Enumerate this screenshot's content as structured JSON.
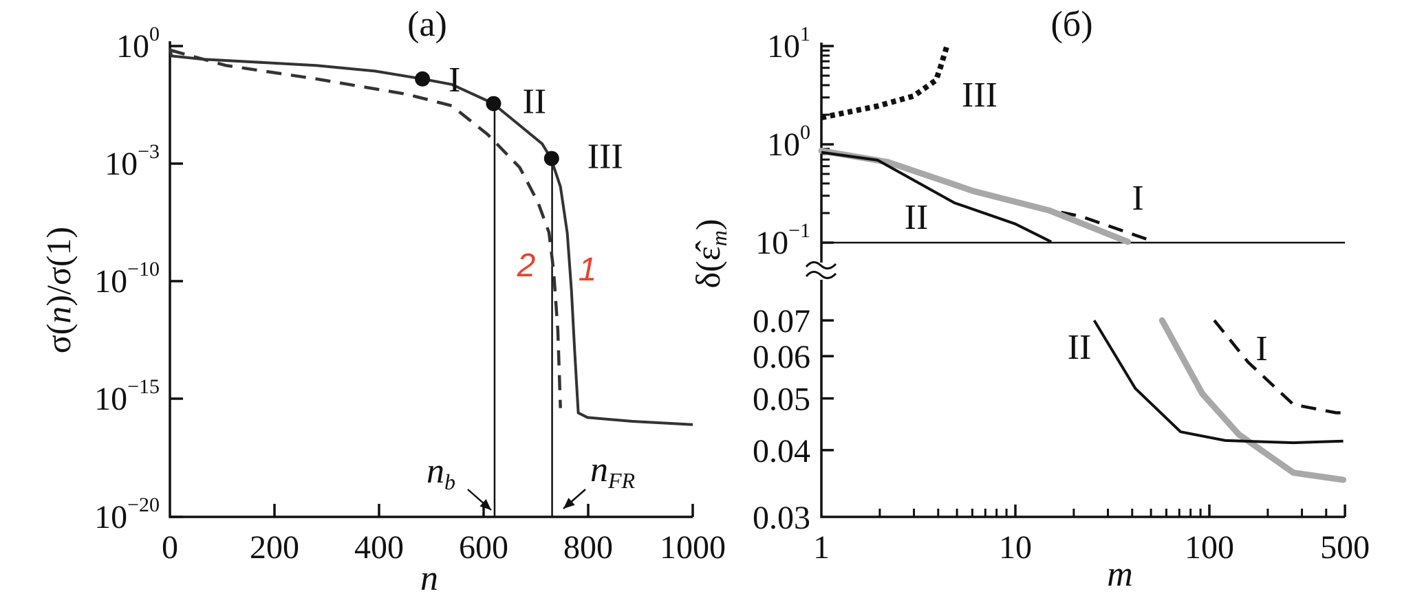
{
  "chart_data": [
    {
      "panel_label": "(a)",
      "type": "line",
      "xlabel": "n",
      "ylabel": {
        "text": "σ(",
        "italic": "n",
        "rest": ")/σ(1)"
      },
      "xlim": [
        0,
        1000
      ],
      "x_ticks": [
        0,
        200,
        400,
        600,
        800,
        1000
      ],
      "y_scale": "log",
      "y_ticks": [
        {
          "mantissa": "10",
          "exponent": "0",
          "value": 1
        },
        {
          "mantissa": "10",
          "exponent": "−3",
          "value": 0.001
        },
        {
          "mantissa": "10",
          "exponent": "−10",
          "value": 1e-10
        },
        {
          "mantissa": "10",
          "exponent": "−15",
          "value": 1e-15
        },
        {
          "mantissa": "10",
          "exponent": "−20",
          "value": 1e-20
        }
      ],
      "grid": false,
      "series": [
        {
          "name": "1",
          "style": "solid",
          "color": "#333333",
          "x": [
            0,
            3,
            64,
            280,
            392,
            483,
            539,
            617,
            669,
            712,
            729,
            747,
            760,
            768,
            774,
            781,
            799,
            885,
            1000
          ],
          "y": [
            0.89,
            0.56,
            0.46,
            0.32,
            0.23,
            0.145,
            0.105,
            0.035,
            0.0095,
            0.0032,
            0.00135,
            4.2e-05,
            7.4e-08,
            4e-11,
            1.3e-13,
            2.5e-16,
            1.6e-16,
            1.1e-16,
            8e-17
          ]
        },
        {
          "name": "2",
          "style": "dashed",
          "color": "#333333",
          "x": [
            0,
            107,
            280,
            453,
            539,
            608,
            669,
            704,
            725,
            734,
            742,
            747
          ],
          "y": [
            0.79,
            0.32,
            0.145,
            0.059,
            0.03,
            0.0055,
            0.00059,
            5e-06,
            8e-08,
            4e-10,
            8e-13,
            4e-16
          ]
        }
      ],
      "series_label_color": "#e8452c",
      "markers": [
        {
          "label": "I",
          "x": 483,
          "y": 0.145
        },
        {
          "label": "II",
          "x": 619,
          "y": 0.034
        },
        {
          "label": "III",
          "x": 730,
          "y": 0.00135
        }
      ],
      "vertical_lines": [
        {
          "main": "n",
          "sub": "b",
          "x": 621
        },
        {
          "main": "n",
          "sub": "FR",
          "x": 731
        }
      ]
    },
    {
      "panel_label": "(б)",
      "type": "line",
      "xlabel": "m",
      "ylabel": {
        "text": "δ(ε̂",
        "sub": "m",
        "rest": ")"
      },
      "x_scale": "log",
      "xlim": [
        1,
        500
      ],
      "x_ticks": [
        "1",
        "10",
        "100",
        "500"
      ],
      "y_scale": "log (broken axis)",
      "y_ticks_upper": [
        {
          "mantissa": "10",
          "exponent": "1",
          "value": 10
        },
        {
          "mantissa": "10",
          "exponent": "0",
          "value": 1
        },
        {
          "mantissa": "10",
          "exponent": "−1",
          "value": 0.1
        }
      ],
      "y_ticks_lower": [
        "0.07",
        "0.06",
        "0.05",
        "0.04",
        "0.03"
      ],
      "ylim_upper": [
        0.1,
        10
      ],
      "ylim_lower": [
        0.03,
        0.07
      ],
      "grid": false,
      "series": [
        {
          "name": "III",
          "style": "dotted",
          "color": "#111111",
          "segments": [
            {
              "x": [
                1,
                1.95,
                2.99,
                3.9,
                4.1,
                4.47
              ],
              "y": [
                1.87,
                2.45,
                3.1,
                4.5,
                6.0,
                10.5
              ]
            }
          ]
        },
        {
          "name": "I",
          "style": "dashed",
          "color": "#111111",
          "segments": [
            {
              "x": [
                1,
                1.95,
                2.68,
                10,
                21.8,
                50
              ],
              "y": [
                0.83,
                0.69,
                0.565,
                0.254,
                0.185,
                0.105
              ]
            },
            {
              "x": [
                106,
                158,
                271,
                450,
                490
              ],
              "y": [
                0.07,
                0.0585,
                0.0487,
                0.047,
                0.047
              ]
            }
          ]
        },
        {
          "style": "solid-thick",
          "color": "#a8a8a8",
          "segments": [
            {
              "x": [
                1,
                2.2,
                6.1,
                15,
                38
              ],
              "y": [
                0.86,
                0.66,
                0.334,
                0.212,
                0.102
              ]
            },
            {
              "x": [
                57,
                92,
                142,
                271,
                490
              ],
              "y": [
                0.07,
                0.051,
                0.0428,
                0.0363,
                0.0352
              ]
            }
          ]
        },
        {
          "name": "II",
          "style": "solid",
          "color": "#111111",
          "segments": [
            {
              "x": [
                1,
                1.95,
                2.4,
                4.85,
                10,
                15.3
              ],
              "y": [
                0.83,
                0.69,
                0.55,
                0.254,
                0.155,
                0.102
              ]
            },
            {
              "x": [
                25.5,
                41.5,
                71,
                121,
                271,
                490
              ],
              "y": [
                0.07,
                0.0522,
                0.0433,
                0.0417,
                0.0413,
                0.0416
              ]
            }
          ]
        }
      ]
    }
  ]
}
